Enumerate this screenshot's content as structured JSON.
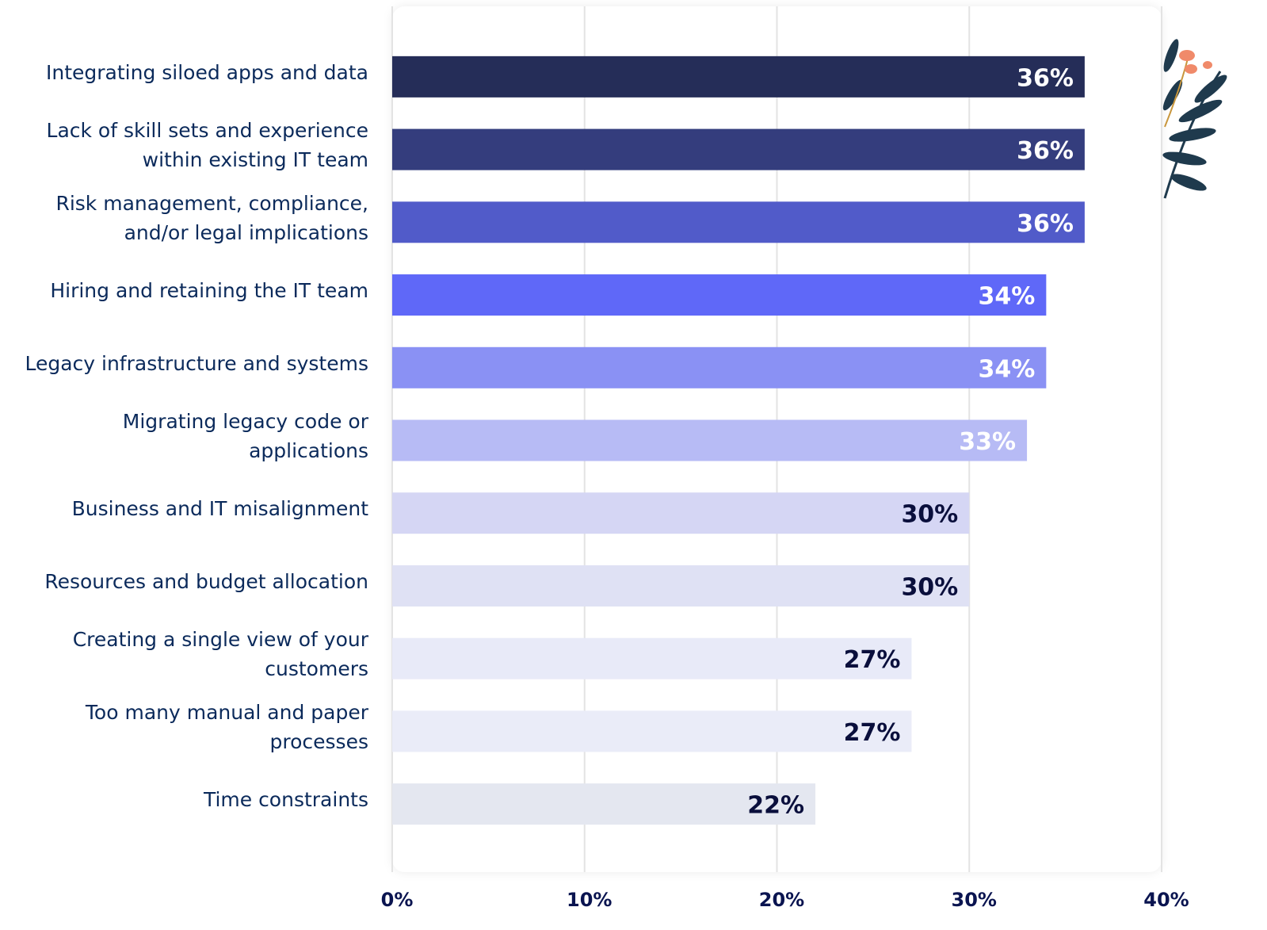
{
  "chart_data": {
    "type": "barh",
    "categories": [
      [
        "Integrating siloed apps and data"
      ],
      [
        "Lack of skill sets and experience",
        "within existing IT team"
      ],
      [
        "Risk management, compliance,",
        "and/or legal implications"
      ],
      [
        "Hiring and retaining the IT team"
      ],
      [
        "Legacy infrastructure and systems"
      ],
      [
        "Migrating legacy code or",
        "applications"
      ],
      [
        "Business and IT misalignment"
      ],
      [
        "Resources and budget allocation"
      ],
      [
        "Creating a single view of your",
        "customers"
      ],
      [
        "Too many manual and paper",
        "processes"
      ],
      [
        "Time constraints"
      ]
    ],
    "values": [
      36,
      36,
      36,
      34,
      34,
      33,
      30,
      30,
      27,
      27,
      22
    ],
    "value_labels": [
      "36%",
      "36%",
      "36%",
      "34%",
      "34%",
      "33%",
      "30%",
      "30%",
      "27%",
      "27%",
      "22%"
    ],
    "colors": [
      "#252d58",
      "#343d7d",
      "#515bc9",
      "#5f68f8",
      "#8a91f4",
      "#b7bbf5",
      "#d5d6f4",
      "#dfe1f4",
      "#e8eaf8",
      "#eaecf8",
      "#e4e7f0"
    ],
    "xlim": [
      0,
      40
    ],
    "xticks": [
      {
        "value": 0,
        "label": "0%"
      },
      {
        "value": 10,
        "label": "10%"
      },
      {
        "value": 20,
        "label": "20%"
      },
      {
        "value": 30,
        "label": "30%"
      },
      {
        "value": 40,
        "label": "40%"
      }
    ],
    "grid": true
  }
}
